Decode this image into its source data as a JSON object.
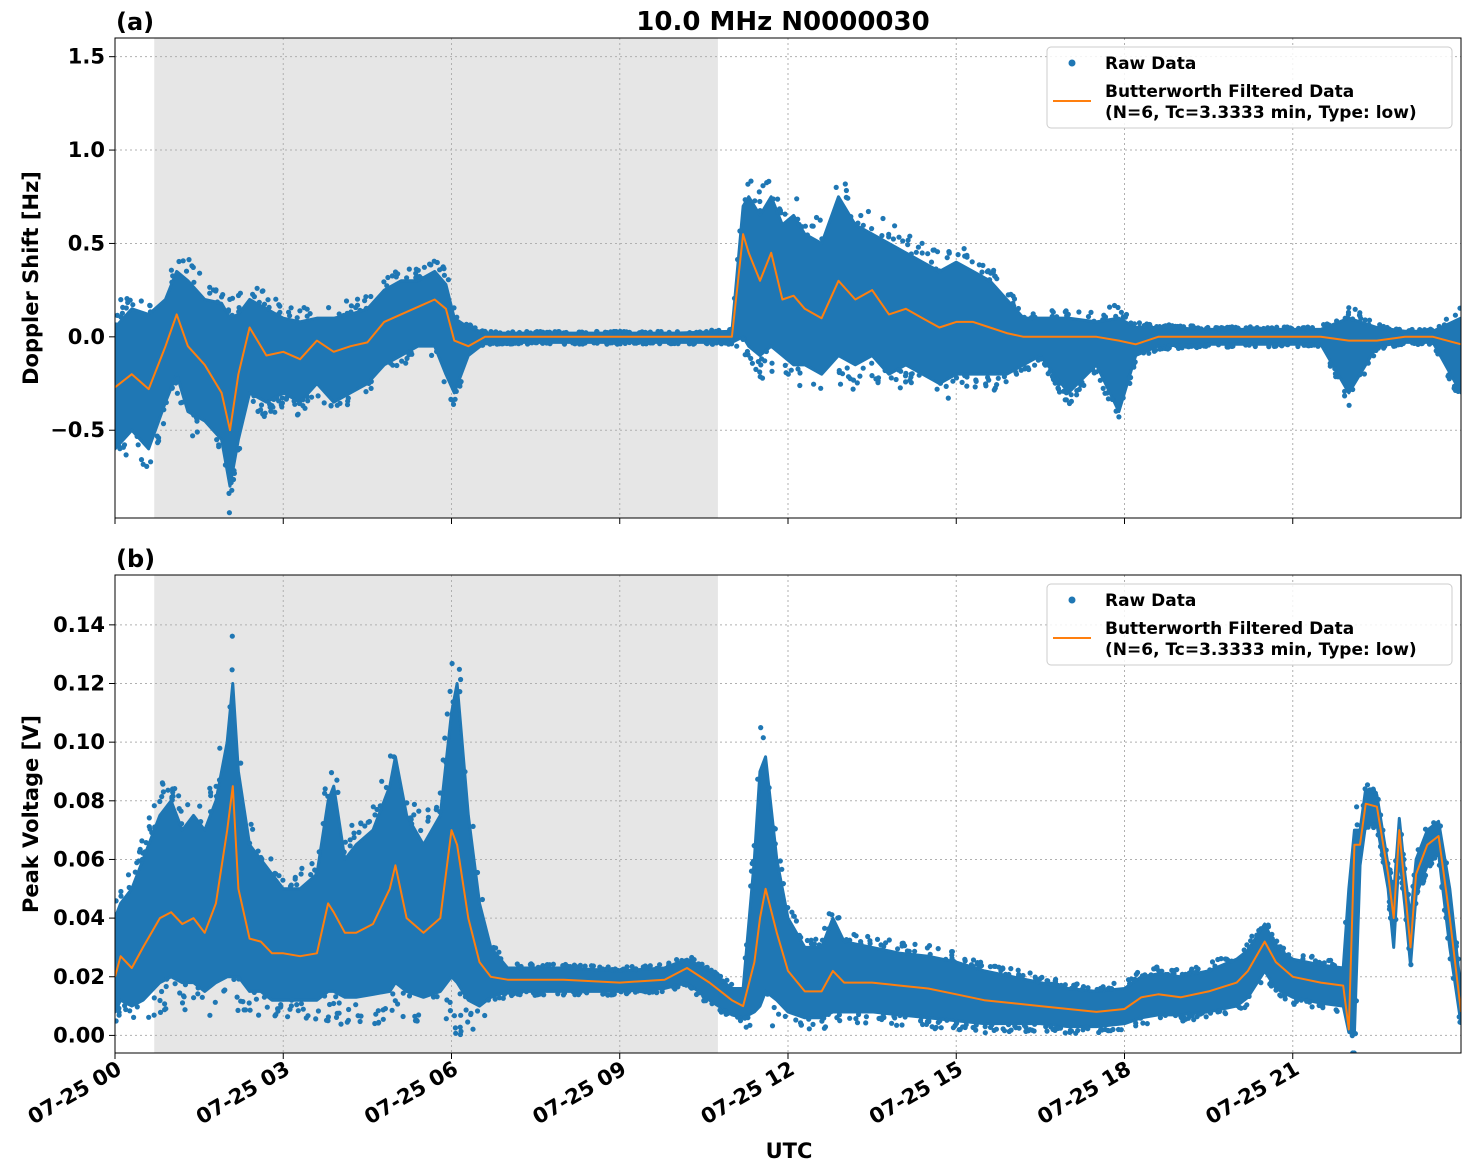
{
  "chart_data": {
    "type": "scatter",
    "title": "10.0 MHz N0000030",
    "xlabel": "UTC",
    "x_tick_labels": [
      "07-25 00",
      "07-25 03",
      "07-25 06",
      "07-25 09",
      "07-25 12",
      "07-25 15",
      "07-25 18",
      "07-25 21"
    ],
    "x_ticks_hours": [
      0,
      3,
      6,
      9,
      12,
      15,
      18,
      21
    ],
    "xlim_hours": [
      0,
      24
    ],
    "shaded_region_hours": [
      0.7,
      10.75
    ],
    "grid": true,
    "colors": {
      "raw": "#1f77b4",
      "filtered": "#ff7f0e",
      "shade": "#e6e6e6",
      "grid": "#b0b0b0"
    },
    "legend": {
      "placement": "top-right",
      "raw_label": "Raw Data",
      "filtered_label_line1": "Butterworth Filtered Data",
      "filtered_label_line2": "(N=6, Tc=3.3333 min, Type: low)"
    },
    "panels": [
      {
        "panel_label": "(a)",
        "ylabel": "Doppler Shift [Hz]",
        "ylim": [
          -0.97,
          1.6
        ],
        "yticks": [
          -0.5,
          0.0,
          0.5,
          1.0,
          1.5
        ],
        "ytick_labels": [
          "−0.5",
          "0.0",
          "0.5",
          "1.0",
          "1.5"
        ],
        "filtered_series": {
          "name": "Butterworth Filtered Data",
          "x": [
            0,
            0.3,
            0.6,
            0.9,
            1.1,
            1.3,
            1.6,
            1.9,
            2.05,
            2.2,
            2.4,
            2.7,
            3.0,
            3.3,
            3.6,
            3.9,
            4.2,
            4.5,
            4.8,
            5.1,
            5.4,
            5.7,
            5.9,
            6.05,
            6.3,
            6.6,
            7.0,
            8.0,
            9.0,
            10.0,
            11.0,
            11.2,
            11.3,
            11.5,
            11.7,
            11.9,
            12.1,
            12.3,
            12.6,
            12.9,
            13.2,
            13.5,
            13.8,
            14.1,
            14.4,
            14.7,
            15.0,
            15.3,
            15.6,
            15.9,
            16.2,
            16.5,
            17.0,
            17.5,
            17.9,
            18.2,
            18.6,
            19.5,
            20.5,
            21.5,
            22.0,
            22.5,
            23.0,
            23.5,
            24.0
          ],
          "y": [
            -0.27,
            -0.2,
            -0.28,
            -0.05,
            0.12,
            -0.05,
            -0.15,
            -0.3,
            -0.5,
            -0.2,
            0.05,
            -0.1,
            -0.08,
            -0.12,
            -0.02,
            -0.08,
            -0.05,
            -0.03,
            0.08,
            0.12,
            0.16,
            0.2,
            0.15,
            -0.02,
            -0.05,
            0.0,
            0.0,
            0.0,
            0.0,
            0.0,
            0.0,
            0.55,
            0.45,
            0.3,
            0.45,
            0.2,
            0.22,
            0.15,
            0.1,
            0.3,
            0.2,
            0.25,
            0.12,
            0.15,
            0.1,
            0.05,
            0.08,
            0.08,
            0.05,
            0.02,
            0.0,
            0.0,
            0.0,
            0.0,
            -0.02,
            -0.04,
            0.0,
            0.0,
            0.0,
            0.0,
            -0.02,
            -0.02,
            0.0,
            0.0,
            -0.04
          ]
        },
        "raw_band": {
          "name": "Raw Data",
          "x": [
            0,
            0.3,
            0.6,
            0.9,
            1.1,
            1.3,
            1.6,
            1.9,
            2.05,
            2.2,
            2.4,
            2.7,
            3.0,
            3.3,
            3.6,
            3.9,
            4.2,
            4.5,
            4.8,
            5.1,
            5.4,
            5.7,
            5.9,
            6.05,
            6.3,
            6.6,
            7.0,
            8.0,
            9.0,
            10.0,
            11.0,
            11.2,
            11.3,
            11.5,
            11.7,
            11.9,
            12.1,
            12.3,
            12.6,
            12.9,
            13.2,
            13.5,
            13.8,
            14.1,
            14.4,
            14.7,
            15.0,
            15.3,
            15.6,
            15.9,
            16.2,
            16.5,
            17.0,
            17.5,
            17.9,
            18.2,
            18.6,
            19.5,
            20.5,
            21.5,
            22.0,
            22.5,
            23.0,
            23.5,
            24.0
          ],
          "upper": [
            0.05,
            0.15,
            0.12,
            0.2,
            0.35,
            0.3,
            0.2,
            0.18,
            0.1,
            0.12,
            0.2,
            0.15,
            0.1,
            0.08,
            0.1,
            0.1,
            0.12,
            0.15,
            0.25,
            0.3,
            0.3,
            0.35,
            0.28,
            0.1,
            0.05,
            0.02,
            0.02,
            0.02,
            0.02,
            0.02,
            0.03,
            0.7,
            0.75,
            0.65,
            0.75,
            0.6,
            0.65,
            0.55,
            0.5,
            0.75,
            0.6,
            0.55,
            0.5,
            0.45,
            0.4,
            0.35,
            0.4,
            0.35,
            0.3,
            0.2,
            0.1,
            0.1,
            0.1,
            0.08,
            0.1,
            0.05,
            0.05,
            0.04,
            0.04,
            0.04,
            0.1,
            0.05,
            0.03,
            0.03,
            0.1
          ],
          "lower": [
            -0.6,
            -0.5,
            -0.6,
            -0.35,
            -0.2,
            -0.4,
            -0.45,
            -0.55,
            -0.8,
            -0.55,
            -0.3,
            -0.35,
            -0.3,
            -0.35,
            -0.25,
            -0.35,
            -0.3,
            -0.25,
            -0.15,
            -0.1,
            -0.05,
            -0.05,
            -0.2,
            -0.3,
            -0.1,
            -0.03,
            -0.03,
            -0.03,
            -0.03,
            -0.03,
            -0.03,
            0.0,
            -0.05,
            -0.1,
            -0.05,
            -0.1,
            -0.15,
            -0.15,
            -0.2,
            -0.1,
            -0.15,
            -0.1,
            -0.2,
            -0.15,
            -0.2,
            -0.25,
            -0.2,
            -0.2,
            -0.2,
            -0.2,
            -0.15,
            -0.1,
            -0.3,
            -0.15,
            -0.4,
            -0.1,
            -0.05,
            -0.04,
            -0.04,
            -0.04,
            -0.3,
            -0.05,
            -0.03,
            -0.03,
            -0.3
          ]
        }
      },
      {
        "panel_label": "(b)",
        "ylabel": "Peak Voltage [V]",
        "ylim": [
          -0.006,
          0.157
        ],
        "yticks": [
          0.0,
          0.02,
          0.04,
          0.06,
          0.08,
          0.1,
          0.12,
          0.14
        ],
        "ytick_labels": [
          "0.00",
          "0.02",
          "0.04",
          "0.06",
          "0.08",
          "0.10",
          "0.12",
          "0.14"
        ],
        "filtered_series": {
          "name": "Butterworth Filtered Data",
          "x": [
            0,
            0.1,
            0.3,
            0.5,
            0.8,
            1.0,
            1.2,
            1.4,
            1.6,
            1.8,
            2.0,
            2.1,
            2.2,
            2.4,
            2.6,
            2.8,
            3.0,
            3.3,
            3.6,
            3.8,
            3.9,
            4.1,
            4.3,
            4.6,
            4.9,
            5.0,
            5.2,
            5.5,
            5.8,
            6.0,
            6.1,
            6.3,
            6.5,
            6.7,
            7.0,
            8.0,
            9.0,
            9.8,
            10.2,
            10.6,
            11.0,
            11.2,
            11.4,
            11.5,
            11.6,
            11.8,
            12.0,
            12.3,
            12.6,
            12.8,
            13.0,
            13.5,
            14.0,
            14.5,
            15.0,
            15.5,
            16.0,
            16.5,
            17.0,
            17.5,
            18.0,
            18.3,
            18.6,
            19.0,
            19.5,
            20.0,
            20.2,
            20.5,
            20.7,
            21.0,
            21.5,
            21.9,
            22.0,
            22.1,
            22.2,
            22.3,
            22.5,
            22.7,
            22.8,
            22.9,
            23.0,
            23.1,
            23.2,
            23.4,
            23.6,
            23.8,
            24.0
          ],
          "y": [
            0.02,
            0.027,
            0.023,
            0.03,
            0.04,
            0.042,
            0.038,
            0.04,
            0.035,
            0.045,
            0.07,
            0.085,
            0.05,
            0.033,
            0.032,
            0.028,
            0.028,
            0.027,
            0.028,
            0.045,
            0.042,
            0.035,
            0.035,
            0.038,
            0.05,
            0.058,
            0.04,
            0.035,
            0.04,
            0.07,
            0.065,
            0.04,
            0.025,
            0.02,
            0.019,
            0.019,
            0.018,
            0.019,
            0.023,
            0.018,
            0.012,
            0.01,
            0.025,
            0.04,
            0.05,
            0.035,
            0.022,
            0.015,
            0.015,
            0.022,
            0.018,
            0.018,
            0.017,
            0.016,
            0.014,
            0.012,
            0.011,
            0.01,
            0.009,
            0.008,
            0.009,
            0.013,
            0.014,
            0.013,
            0.015,
            0.018,
            0.022,
            0.032,
            0.025,
            0.02,
            0.018,
            0.017,
            0.002,
            0.065,
            0.065,
            0.079,
            0.078,
            0.055,
            0.04,
            0.07,
            0.05,
            0.03,
            0.055,
            0.065,
            0.068,
            0.04,
            0.008
          ]
        },
        "raw_band": {
          "name": "Raw Data",
          "x": [
            0,
            0.1,
            0.3,
            0.5,
            0.8,
            1.0,
            1.2,
            1.4,
            1.6,
            1.8,
            2.0,
            2.1,
            2.2,
            2.4,
            2.6,
            2.8,
            3.0,
            3.3,
            3.6,
            3.8,
            3.9,
            4.1,
            4.3,
            4.6,
            4.9,
            5.0,
            5.2,
            5.5,
            5.8,
            6.0,
            6.1,
            6.3,
            6.5,
            6.7,
            7.0,
            8.0,
            9.0,
            9.8,
            10.2,
            10.6,
            11.0,
            11.2,
            11.4,
            11.5,
            11.6,
            11.8,
            12.0,
            12.3,
            12.6,
            12.8,
            13.0,
            13.5,
            14.0,
            14.5,
            15.0,
            15.5,
            16.0,
            16.5,
            17.0,
            17.5,
            18.0,
            18.3,
            18.6,
            19.0,
            19.5,
            20.0,
            20.2,
            20.5,
            20.7,
            21.0,
            21.5,
            21.9,
            22.0,
            22.1,
            22.2,
            22.3,
            22.5,
            22.7,
            22.8,
            22.9,
            23.0,
            23.1,
            23.2,
            23.4,
            23.6,
            23.8,
            24.0
          ],
          "upper": [
            0.04,
            0.045,
            0.05,
            0.06,
            0.075,
            0.08,
            0.07,
            0.075,
            0.07,
            0.08,
            0.1,
            0.12,
            0.09,
            0.065,
            0.06,
            0.055,
            0.05,
            0.05,
            0.055,
            0.08,
            0.085,
            0.06,
            0.065,
            0.07,
            0.085,
            0.095,
            0.075,
            0.065,
            0.075,
            0.11,
            0.12,
            0.075,
            0.045,
            0.03,
            0.023,
            0.023,
            0.022,
            0.023,
            0.026,
            0.022,
            0.016,
            0.016,
            0.06,
            0.09,
            0.095,
            0.06,
            0.04,
            0.03,
            0.03,
            0.04,
            0.032,
            0.03,
            0.028,
            0.027,
            0.025,
            0.022,
            0.02,
            0.018,
            0.016,
            0.015,
            0.016,
            0.02,
            0.021,
            0.02,
            0.022,
            0.026,
            0.029,
            0.038,
            0.03,
            0.026,
            0.024,
            0.023,
            0.05,
            0.07,
            0.07,
            0.084,
            0.082,
            0.058,
            0.048,
            0.074,
            0.055,
            0.04,
            0.06,
            0.07,
            0.073,
            0.05,
            0.015
          ],
          "lower": [
            0.008,
            0.012,
            0.01,
            0.012,
            0.018,
            0.02,
            0.018,
            0.018,
            0.015,
            0.018,
            0.02,
            0.02,
            0.02,
            0.015,
            0.015,
            0.012,
            0.012,
            0.012,
            0.012,
            0.015,
            0.015,
            0.013,
            0.013,
            0.014,
            0.015,
            0.018,
            0.015,
            0.013,
            0.015,
            0.02,
            0.018,
            0.012,
            0.01,
            0.013,
            0.015,
            0.015,
            0.015,
            0.016,
            0.018,
            0.012,
            0.007,
            0.006,
            0.008,
            0.01,
            0.015,
            0.012,
            0.008,
            0.006,
            0.006,
            0.008,
            0.008,
            0.008,
            0.007,
            0.006,
            0.005,
            0.004,
            0.004,
            0.004,
            0.003,
            0.003,
            0.004,
            0.006,
            0.007,
            0.007,
            0.008,
            0.01,
            0.013,
            0.022,
            0.016,
            0.013,
            0.011,
            0.01,
            0.001,
            0.001,
            0.058,
            0.072,
            0.072,
            0.05,
            0.03,
            0.062,
            0.044,
            0.024,
            0.048,
            0.058,
            0.062,
            0.03,
            0.004
          ]
        }
      }
    ]
  }
}
